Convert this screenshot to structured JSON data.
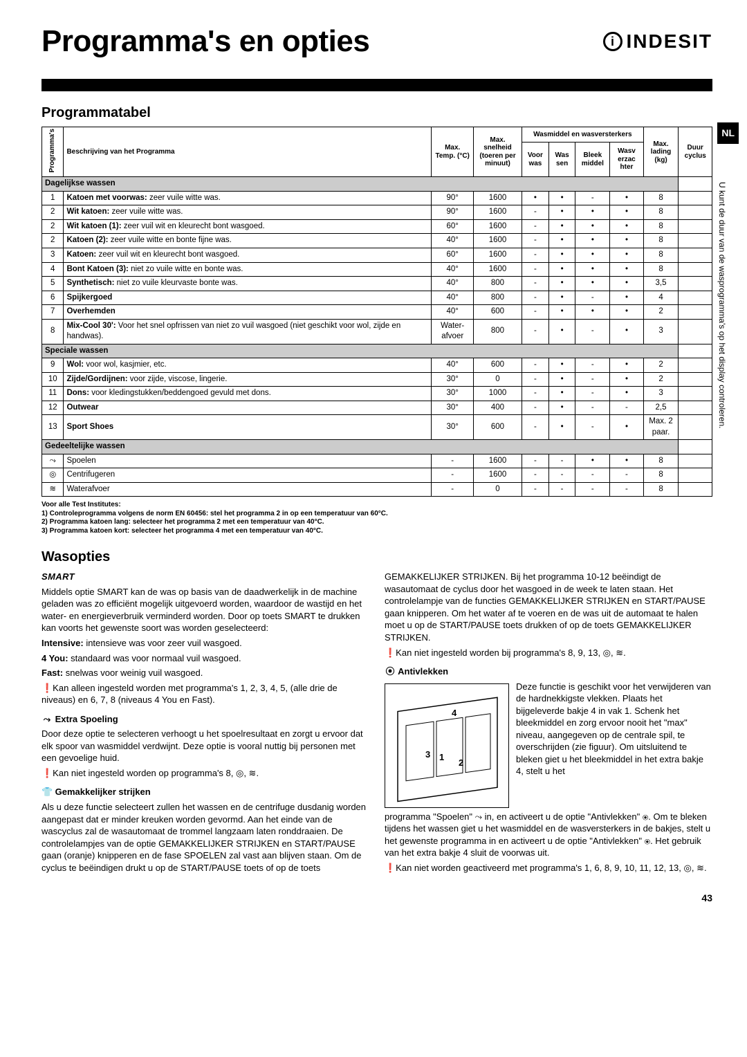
{
  "header": {
    "title": "Programma's en opties",
    "brand": "INDESIT",
    "lang": "NL"
  },
  "table": {
    "section_title": "Programmatabel",
    "headers": {
      "programmas": "Programma's",
      "beschrijving": "Beschrijving van het Programma",
      "maxtemp": "Max. Temp. (°C)",
      "snelheid": "Max. snelheid (toeren per minuut)",
      "wasmiddel": "Wasmiddel en wasversterkers",
      "voorwas": "Voor was",
      "wassen": "Was sen",
      "bleek": "Bleek middel",
      "wasv": "Wasv erzac hter",
      "lading": "Max. lading (kg)",
      "duur": "Duur cyclus"
    },
    "side_note": "U kunt de duur van de wasprogramma's op het display controleren.",
    "sections": [
      {
        "label": "Dagelijkse wassen",
        "rows": [
          {
            "n": "1",
            "d": "<b>Katoen met voorwas:</b> zeer vuile witte was.",
            "t": "90°",
            "s": "1600",
            "vw": "•",
            "ws": "•",
            "bm": "-",
            "wv": "•",
            "kg": "8"
          },
          {
            "n": "2",
            "d": "<b>Wit katoen:</b> zeer vuile witte was.",
            "t": "90°",
            "s": "1600",
            "vw": "-",
            "ws": "•",
            "bm": "•",
            "wv": "•",
            "kg": "8"
          },
          {
            "n": "2",
            "d": "<b>Wit katoen (1):</b> zeer vuil wit en kleurecht bont wasgoed.",
            "t": "60°",
            "s": "1600",
            "vw": "-",
            "ws": "•",
            "bm": "•",
            "wv": "•",
            "kg": "8"
          },
          {
            "n": "2",
            "d": "<b>Katoen (2):</b> zeer vuile witte en bonte fijne was.",
            "t": "40°",
            "s": "1600",
            "vw": "-",
            "ws": "•",
            "bm": "•",
            "wv": "•",
            "kg": "8"
          },
          {
            "n": "3",
            "d": "<b>Katoen:</b> zeer vuil wit en kleurecht bont wasgoed.",
            "t": "60°",
            "s": "1600",
            "vw": "-",
            "ws": "•",
            "bm": "•",
            "wv": "•",
            "kg": "8"
          },
          {
            "n": "4",
            "d": "<b>Bont Katoen (3):</b> niet zo vuile witte en bonte was.",
            "t": "40°",
            "s": "1600",
            "vw": "-",
            "ws": "•",
            "bm": "•",
            "wv": "•",
            "kg": "8"
          },
          {
            "n": "5",
            "d": "<b>Synthetisch:</b> niet zo vuile kleurvaste bonte was.",
            "t": "40°",
            "s": "800",
            "vw": "-",
            "ws": "•",
            "bm": "•",
            "wv": "•",
            "kg": "3,5"
          },
          {
            "n": "6",
            "d": "<b>Spijkergoed</b>",
            "t": "40°",
            "s": "800",
            "vw": "-",
            "ws": "•",
            "bm": "-",
            "wv": "•",
            "kg": "4"
          },
          {
            "n": "7",
            "d": "<b>Overhemden</b>",
            "t": "40°",
            "s": "600",
            "vw": "-",
            "ws": "•",
            "bm": "•",
            "wv": "•",
            "kg": "2"
          },
          {
            "n": "8",
            "d": "<b>Mix-Cool 30':</b> Voor het snel opfrissen van niet zo vuil wasgoed (niet geschikt voor wol, zijde en handwas).",
            "t": "Water-afvoer",
            "s": "800",
            "vw": "-",
            "ws": "•",
            "bm": "-",
            "wv": "•",
            "kg": "3"
          }
        ]
      },
      {
        "label": "Speciale wassen",
        "rows": [
          {
            "n": "9",
            "d": "<b>Wol:</b> voor wol, kasjmier, etc.",
            "t": "40°",
            "s": "600",
            "vw": "-",
            "ws": "•",
            "bm": "-",
            "wv": "•",
            "kg": "2"
          },
          {
            "n": "10",
            "d": "<b>Zijde/Gordijnen:</b> voor zijde, viscose, lingerie.",
            "t": "30°",
            "s": "0",
            "vw": "-",
            "ws": "•",
            "bm": "-",
            "wv": "•",
            "kg": "2"
          },
          {
            "n": "11",
            "d": "<b>Dons:</b> voor kledingstukken/beddengoed gevuld met dons.",
            "t": "30°",
            "s": "1000",
            "vw": "-",
            "ws": "•",
            "bm": "-",
            "wv": "•",
            "kg": "3"
          },
          {
            "n": "12",
            "d": "<b>Outwear</b>",
            "t": "30°",
            "s": "400",
            "vw": "-",
            "ws": "•",
            "bm": "-",
            "wv": "-",
            "kg": "2,5"
          },
          {
            "n": "13",
            "d": "<b>Sport Shoes</b>",
            "t": "30°",
            "s": "600",
            "vw": "-",
            "ws": "•",
            "bm": "-",
            "wv": "•",
            "kg": "Max. 2 paar."
          }
        ]
      },
      {
        "label": "Gedeeltelijke wassen",
        "rows": [
          {
            "n": "⤳",
            "d": "Spoelen",
            "t": "-",
            "s": "1600",
            "vw": "-",
            "ws": "-",
            "bm": "•",
            "wv": "•",
            "kg": "8"
          },
          {
            "n": "◎",
            "d": "Centrifugeren",
            "t": "-",
            "s": "1600",
            "vw": "-",
            "ws": "-",
            "bm": "-",
            "wv": "-",
            "kg": "8"
          },
          {
            "n": "≋",
            "d": "Waterafvoer",
            "t": "-",
            "s": "0",
            "vw": "-",
            "ws": "-",
            "bm": "-",
            "wv": "-",
            "kg": "8"
          }
        ]
      }
    ],
    "footnotes": [
      "Voor alle Test Institutes:",
      "1) Controleprogramma volgens de norm EN 60456: stel het programma 2 in op een temperatuur van 60°C.",
      "2) Programma katoen lang: selecteer het programma 2 met een temperatuur van 40°C.",
      "3) Programma katoen kort: selecteer het programma 4 met een temperatuur van 40°C."
    ]
  },
  "wasopties": {
    "title": "Wasopties",
    "smart_label": "SMART",
    "smart_p1": "Middels optie SMART kan de was op basis van de daadwerkelijk in de machine geladen was zo efficiënt mogelijk uitgevoerd worden, waardoor de wastijd en het water- en energieverbruik verminderd worden. Door op toets SMART te drukken kan voorts het gewenste soort was worden geselecteerd:",
    "intensive": "Intensive: intensieve was voor zeer vuil wasgoed.",
    "fouryou": "4 You: standaard was voor normaal vuil wasgoed.",
    "fast": "Fast: snelwas voor weinig vuil wasgoed.",
    "smart_note": "❗Kan alleen ingesteld worden met programma's 1, 2, 3, 4, 5, (alle drie de niveaus) en 6, 7, 8 (niveaus 4 You en Fast).",
    "extra": {
      "title": "Extra Spoeling",
      "body": "Door deze optie te selecteren verhoogt u het spoelresultaat en zorgt u ervoor dat elk spoor van wasmiddel verdwijnt. Deze optie is vooral nuttig bij personen met een gevoelige huid.",
      "note": "❗Kan niet ingesteld worden op programma's 8, ◎, ≋."
    },
    "strijken": {
      "title": "Gemakkelijker strijken",
      "body": "Als u deze functie selecteert zullen het wassen en de centrifuge dusdanig worden aangepast dat er minder kreuken worden gevormd. Aan het einde van de wascyclus zal de wasautomaat de trommel langzaam laten ronddraaien. De controlelampjes van de optie GEMAKKELIJKER STRIJKEN en START/PAUSE gaan (oranje) knipperen en de fase SPOELEN zal vast aan blijven staan. Om de cyclus te beëindigen drukt u op de START/PAUSE toets of op de toets"
    },
    "col2_top": "GEMAKKELIJKER STRIJKEN. Bij het programma 10-12 beëindigt de wasautomaat de cyclus door het wasgoed in de week te laten staan. Het controlelampje van de functies GEMAKKELIJKER STRIJKEN en START/PAUSE gaan knipperen. Om het water af te voeren en de was uit de automaat te halen moet u op de START/PAUSE toets drukken of op de toets GEMAKKELIJKER STRIJKEN.",
    "col2_note": "❗Kan niet ingesteld worden bij programma's 8, 9, 13, ◎, ≋.",
    "anti": {
      "title": "Antivlekken",
      "body1": "Deze functie is geschikt voor het verwijderen van de hardnekkigste vlekken. Plaats het bijgeleverde bakje 4 in vak 1. Schenk het bleekmiddel en zorg ervoor nooit het \"max\" niveau, aangegeven op de centrale spil, te overschrijden (zie figuur). Om uitsluitend te bleken giet u het bleekmiddel in het extra bakje 4, stelt u het",
      "body2": "programma \"Spoelen\" ⤳ in, en activeert u de optie \"Antivlekken\" ⦿. Om te bleken tijdens het wassen giet u het wasmiddel en de wasversterkers in de bakjes, stelt u het gewenste programma in en activeert u de optie \"Antivlekken\" ⦿. Het gebruik van het extra bakje 4 sluit de voorwas uit.",
      "note": "❗Kan niet worden geactiveerd met programma's 1, 6, 8, 9, 10, 11, 12, 13, ◎, ≋."
    }
  },
  "page_num": "43"
}
